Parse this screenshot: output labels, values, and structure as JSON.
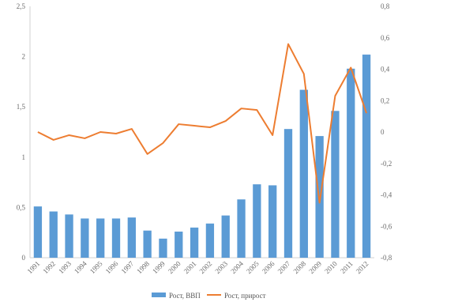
{
  "chart_data": {
    "type": "bar",
    "title": "",
    "xlabel": "",
    "ylabel": "",
    "categories": [
      "1991",
      "1992",
      "1993",
      "1994",
      "1995",
      "1996",
      "1997",
      "1998",
      "1999",
      "2000",
      "2001",
      "2002",
      "2003",
      "2004",
      "2005",
      "2006",
      "2007",
      "2008",
      "2009",
      "2010",
      "2011",
      "2012"
    ],
    "ylim": [
      0,
      2.5
    ],
    "y_ticks": [
      "0",
      "0,5",
      "1",
      "1,5",
      "2",
      "2,5"
    ],
    "y2lim": [
      -0.8,
      0.8
    ],
    "y2_ticks": [
      "-0,8",
      "-0,6",
      "-0,4",
      "-0,2",
      "0",
      "0,2",
      "0,4",
      "0,6",
      "0,8"
    ],
    "series": [
      {
        "name": "Рост, ВВП",
        "type": "bar",
        "axis": "left",
        "color": "#5b9bd5",
        "values": [
          0.51,
          0.46,
          0.43,
          0.39,
          0.39,
          0.39,
          0.4,
          0.27,
          0.19,
          0.26,
          0.3,
          0.34,
          0.42,
          0.58,
          0.73,
          0.72,
          1.28,
          1.67,
          1.21,
          1.46,
          1.88,
          2.02
        ]
      },
      {
        "name": "Рост, прирост",
        "type": "line",
        "axis": "right",
        "color": "#ed7d31",
        "values": [
          0.0,
          -0.05,
          -0.02,
          -0.04,
          0.0,
          -0.01,
          0.02,
          -0.14,
          -0.07,
          0.05,
          0.04,
          0.03,
          0.07,
          0.15,
          0.14,
          -0.02,
          0.56,
          0.37,
          -0.45,
          0.23,
          0.41,
          0.12
        ]
      }
    ],
    "grid": false,
    "legend_position": "bottom"
  }
}
